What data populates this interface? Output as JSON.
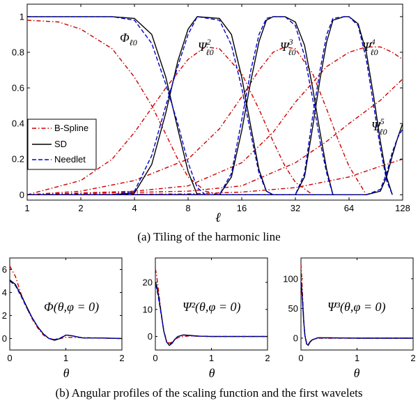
{
  "captions": {
    "a": "(a)  Tiling of the harmonic line",
    "b": "(b)  Angular profiles of the scaling function and the first wavelets"
  },
  "colors": {
    "bspline": "#cc0000",
    "sd": "#000000",
    "needlet": "#0000cc"
  },
  "chart_data": [
    {
      "type": "line",
      "id": "tiling",
      "xscale": "log2",
      "xlim": [
        1,
        128
      ],
      "ylim": [
        -0.03,
        1.07
      ],
      "xlabel": "ℓ",
      "xticks": [
        1,
        2,
        4,
        8,
        16,
        32,
        64,
        128
      ],
      "yticks": [
        0,
        0.2,
        0.4,
        0.6,
        0.8,
        1
      ],
      "legend": {
        "placement": "left-middle",
        "entries": [
          "B-Spline",
          "SD",
          "Needlet"
        ]
      },
      "annotations": [
        {
          "base": "Φ",
          "sub": "ℓ0",
          "sup": ""
        },
        {
          "base": "Ψ",
          "sub": "ℓ0",
          "sup": "2"
        },
        {
          "base": "Ψ",
          "sub": "ℓ0",
          "sup": "3"
        },
        {
          "base": "Ψ",
          "sub": "ℓ0",
          "sup": "4"
        },
        {
          "base": "Ψ",
          "sub": "ℓ0",
          "sup": "5"
        }
      ],
      "series": [
        {
          "name": "B-Spline",
          "style": "dashdot",
          "color": "#cc0000",
          "curves": [
            {
              "x": [
                1,
                1.5,
                2,
                3,
                4,
                5,
                6,
                7,
                8,
                10,
                12
              ],
              "y": [
                0.98,
                0.97,
                0.93,
                0.82,
                0.66,
                0.5,
                0.34,
                0.2,
                0.1,
                0.02,
                0
              ]
            },
            {
              "x": [
                1,
                2,
                3,
                4,
                6,
                8,
                10,
                12,
                16,
                20,
                24,
                28,
                32,
                40
              ],
              "y": [
                0,
                0.08,
                0.2,
                0.35,
                0.6,
                0.76,
                0.83,
                0.82,
                0.68,
                0.48,
                0.3,
                0.16,
                0.07,
                0
              ]
            },
            {
              "x": [
                1,
                2,
                4,
                8,
                12,
                16,
                20,
                24,
                28,
                32,
                40,
                48,
                56,
                64,
                80
              ],
              "y": [
                0,
                0.02,
                0.08,
                0.2,
                0.37,
                0.55,
                0.7,
                0.8,
                0.83,
                0.82,
                0.68,
                0.48,
                0.3,
                0.16,
                0
              ]
            },
            {
              "x": [
                1,
                4,
                8,
                16,
                24,
                32,
                48,
                64,
                80,
                96,
                112,
                128
              ],
              "y": [
                0,
                0.02,
                0.05,
                0.18,
                0.35,
                0.52,
                0.72,
                0.8,
                0.83,
                0.83,
                0.8,
                0.76
              ]
            },
            {
              "x": [
                1,
                8,
                16,
                32,
                48,
                64,
                96,
                128
              ],
              "y": [
                0,
                0.02,
                0.05,
                0.18,
                0.3,
                0.4,
                0.53,
                0.65
              ]
            },
            {
              "x": [
                1,
                8,
                16,
                32,
                64,
                96,
                128
              ],
              "y": [
                0,
                0.005,
                0.015,
                0.04,
                0.1,
                0.16,
                0.2
              ]
            }
          ]
        },
        {
          "name": "SD",
          "style": "solid",
          "color": "#000000",
          "curves": [
            {
              "x": [
                1,
                3,
                4,
                5,
                6,
                7,
                8,
                9
              ],
              "y": [
                1,
                1,
                0.99,
                0.9,
                0.66,
                0.37,
                0.13,
                0
              ]
            },
            {
              "x": [
                1,
                3,
                4,
                5,
                6,
                7,
                8,
                9,
                12,
                14,
                16,
                18,
                20,
                22,
                24
              ],
              "y": [
                0,
                0,
                0.01,
                0.17,
                0.46,
                0.75,
                0.93,
                1,
                0.99,
                0.9,
                0.66,
                0.38,
                0.14,
                0.02,
                0
              ]
            },
            {
              "x": [
                1,
                12,
                14,
                16,
                18,
                20,
                22,
                24,
                28,
                32,
                36,
                40,
                44,
                48,
                52
              ],
              "y": [
                0,
                0,
                0.1,
                0.36,
                0.64,
                0.86,
                0.98,
                1,
                1,
                0.97,
                0.84,
                0.6,
                0.35,
                0.14,
                0
              ]
            },
            {
              "x": [
                1,
                32,
                36,
                40,
                44,
                48,
                52,
                60,
                64,
                72,
                80,
                88,
                96,
                104,
                112
              ],
              "y": [
                0,
                0,
                0.1,
                0.38,
                0.65,
                0.86,
                0.98,
                1,
                1,
                0.96,
                0.8,
                0.55,
                0.3,
                0.1,
                0
              ]
            },
            {
              "x": [
                1,
                80,
                96,
                104,
                112,
                120,
                128
              ],
              "y": [
                0,
                0,
                0.02,
                0.1,
                0.22,
                0.32,
                0.4
              ]
            }
          ]
        },
        {
          "name": "Needlet",
          "style": "dashed",
          "color": "#0000cc",
          "curves": [
            {
              "x": [
                1,
                3,
                4,
                5,
                6,
                7,
                8,
                9,
                10
              ],
              "y": [
                1,
                1,
                0.98,
                0.85,
                0.62,
                0.4,
                0.18,
                0.04,
                0
              ]
            },
            {
              "x": [
                1,
                3,
                4,
                5,
                6,
                7,
                8,
                9,
                12,
                14,
                16,
                18,
                20,
                22,
                24
              ],
              "y": [
                0,
                0,
                0.02,
                0.22,
                0.5,
                0.72,
                0.9,
                1,
                0.98,
                0.84,
                0.6,
                0.34,
                0.12,
                0.02,
                0
              ]
            },
            {
              "x": [
                1,
                12,
                14,
                16,
                18,
                20,
                22,
                24,
                28,
                32,
                36,
                40,
                44,
                48,
                52
              ],
              "y": [
                0,
                0,
                0.12,
                0.42,
                0.7,
                0.9,
                0.99,
                1,
                1,
                0.95,
                0.78,
                0.54,
                0.3,
                0.12,
                0
              ]
            },
            {
              "x": [
                1,
                32,
                36,
                40,
                44,
                48,
                52,
                60,
                64,
                72,
                80,
                88,
                96,
                104,
                112
              ],
              "y": [
                0,
                0,
                0.12,
                0.44,
                0.7,
                0.9,
                0.99,
                1,
                1,
                0.95,
                0.76,
                0.5,
                0.26,
                0.08,
                0
              ]
            },
            {
              "x": [
                1,
                80,
                96,
                104,
                112,
                120,
                128
              ],
              "y": [
                0,
                0,
                0.03,
                0.12,
                0.24,
                0.32,
                0.37
              ]
            }
          ]
        }
      ]
    },
    {
      "type": "line",
      "id": "phi-profile",
      "xlim": [
        0,
        2
      ],
      "ylim": [
        -1,
        7
      ],
      "xticks": [
        0,
        1,
        2
      ],
      "yticks": [
        0,
        2,
        4,
        6
      ],
      "xlabel": "θ",
      "annotation": "Φ(θ,φ = 0)",
      "series": [
        {
          "name": "B-Spline",
          "x": [
            0,
            0.1,
            0.2,
            0.3,
            0.4,
            0.5,
            0.6,
            0.7,
            0.8,
            0.9,
            1.0,
            1.2,
            1.5,
            2
          ],
          "y": [
            6.3,
            5.4,
            3.9,
            2.7,
            1.7,
            0.9,
            0.3,
            0.0,
            -0.1,
            0.0,
            0.1,
            0.1,
            0.05,
            0
          ]
        },
        {
          "name": "SD",
          "x": [
            0,
            0.1,
            0.2,
            0.3,
            0.4,
            0.5,
            0.6,
            0.7,
            0.8,
            0.9,
            1.0,
            1.1,
            1.3,
            1.6,
            2
          ],
          "y": [
            5.1,
            4.7,
            3.8,
            2.8,
            1.8,
            1.0,
            0.4,
            0.0,
            -0.15,
            0.0,
            0.3,
            0.25,
            0.05,
            0.05,
            0
          ]
        },
        {
          "name": "Needlet",
          "x": [
            0,
            0.1,
            0.2,
            0.3,
            0.4,
            0.5,
            0.6,
            0.7,
            0.8,
            0.9,
            1.0,
            1.1,
            1.3,
            1.6,
            2
          ],
          "y": [
            5.0,
            4.6,
            3.7,
            2.7,
            1.8,
            1.0,
            0.4,
            0.0,
            -0.1,
            0.05,
            0.3,
            0.25,
            0.05,
            0.05,
            0
          ]
        }
      ]
    },
    {
      "type": "line",
      "id": "psi2-profile",
      "xlim": [
        0,
        2
      ],
      "ylim": [
        -5,
        29
      ],
      "xticks": [
        0,
        1,
        2
      ],
      "yticks": [
        0,
        10,
        20
      ],
      "xlabel": "θ",
      "annotation": "Ψ²(θ,φ = 0)",
      "series": [
        {
          "name": "B-Spline",
          "x": [
            0,
            0.02,
            0.05,
            0.1,
            0.15,
            0.2,
            0.25,
            0.3,
            0.35,
            0.4,
            0.5,
            0.6,
            0.8,
            1,
            2
          ],
          "y": [
            25,
            23,
            18,
            9,
            2,
            -1.5,
            -2.5,
            -2,
            -1,
            -0.5,
            0,
            0.2,
            0.1,
            0,
            0
          ]
        },
        {
          "name": "SD",
          "x": [
            0,
            0.02,
            0.05,
            0.1,
            0.15,
            0.2,
            0.25,
            0.3,
            0.35,
            0.4,
            0.5,
            0.6,
            0.8,
            1,
            2
          ],
          "y": [
            20,
            19,
            16,
            9,
            2,
            -2,
            -3.3,
            -2.5,
            -1,
            0,
            0.6,
            0.4,
            0.1,
            0,
            0
          ]
        },
        {
          "name": "Needlet",
          "x": [
            0,
            0.02,
            0.05,
            0.1,
            0.15,
            0.2,
            0.25,
            0.3,
            0.35,
            0.4,
            0.5,
            0.6,
            0.8,
            1,
            2
          ],
          "y": [
            19,
            18,
            15,
            8.5,
            2,
            -2,
            -3,
            -2.3,
            -1,
            0,
            0.5,
            0.3,
            0.1,
            0,
            0
          ]
        }
      ]
    },
    {
      "type": "line",
      "id": "psi3-profile",
      "xlim": [
        0,
        2
      ],
      "ylim": [
        -20,
        135
      ],
      "xticks": [
        0,
        1,
        2
      ],
      "yticks": [
        0,
        50,
        100
      ],
      "xlabel": "θ",
      "annotation": "Ψ³(θ,φ = 0)",
      "series": [
        {
          "name": "B-Spline",
          "x": [
            0,
            0.01,
            0.03,
            0.05,
            0.07,
            0.1,
            0.13,
            0.16,
            0.2,
            0.3,
            0.5,
            1,
            2
          ],
          "y": [
            125,
            110,
            70,
            30,
            5,
            -8,
            -10,
            -6,
            -3,
            0,
            0,
            0,
            0
          ]
        },
        {
          "name": "SD",
          "x": [
            0,
            0.01,
            0.03,
            0.05,
            0.07,
            0.1,
            0.13,
            0.16,
            0.2,
            0.3,
            0.5,
            1,
            2
          ],
          "y": [
            95,
            88,
            60,
            28,
            5,
            -10,
            -12,
            -7,
            -3,
            0.5,
            0.5,
            0,
            0
          ]
        },
        {
          "name": "Needlet",
          "x": [
            0,
            0.01,
            0.03,
            0.05,
            0.07,
            0.1,
            0.13,
            0.16,
            0.2,
            0.3,
            0.5,
            1,
            2
          ],
          "y": [
            92,
            85,
            58,
            27,
            5,
            -9,
            -11,
            -6,
            -3,
            0.5,
            0.4,
            0,
            0
          ]
        }
      ]
    }
  ]
}
